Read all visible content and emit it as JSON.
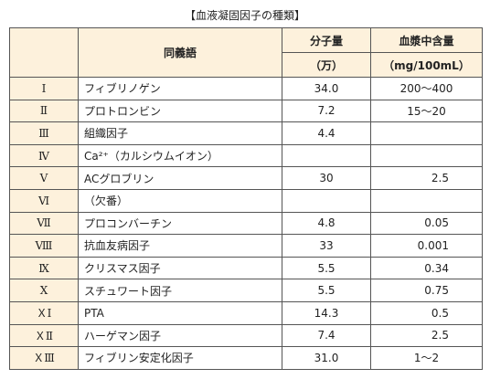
{
  "title": "【血液凝固因子の種類】",
  "table": {
    "header": {
      "name": "同義語",
      "weight": [
        "分子量",
        "（万）"
      ],
      "content": [
        "血漿中含量",
        "（mg/100mL）"
      ]
    },
    "rows": [
      [
        "Ⅰ",
        "フィブリノゲン",
        "34.0",
        "200～400"
      ],
      [
        "Ⅱ",
        "プロトロンビン",
        "7.2",
        "15～20"
      ],
      [
        "Ⅲ",
        "組織因子",
        "4.4",
        null
      ],
      [
        "Ⅳ",
        "Ca²⁺（カルシウムイオン）",
        null,
        null
      ],
      [
        "Ⅴ",
        "ACグロブリン",
        "30",
        "2.5"
      ],
      [
        "Ⅵ",
        "（欠番）",
        null,
        null
      ],
      [
        "Ⅶ",
        "プロコンバーチン",
        "4.8",
        "0.05"
      ],
      [
        "Ⅷ",
        "抗血友病因子",
        "33",
        "0.001"
      ],
      [
        "Ⅸ",
        "クリスマス因子",
        "5.5",
        "0.34"
      ],
      [
        "Ⅹ",
        "スチュワート因子",
        "5.5",
        "0.75"
      ],
      [
        "ＸⅠ",
        "PTA",
        "14.3",
        "0.5"
      ],
      [
        "ＸⅡ",
        "ハーゲマン因子",
        "7.4",
        "2.5"
      ],
      [
        "ＸⅢ",
        "フィブリン安定化因子",
        "31.0",
        "1～2"
      ]
    ]
  }
}
